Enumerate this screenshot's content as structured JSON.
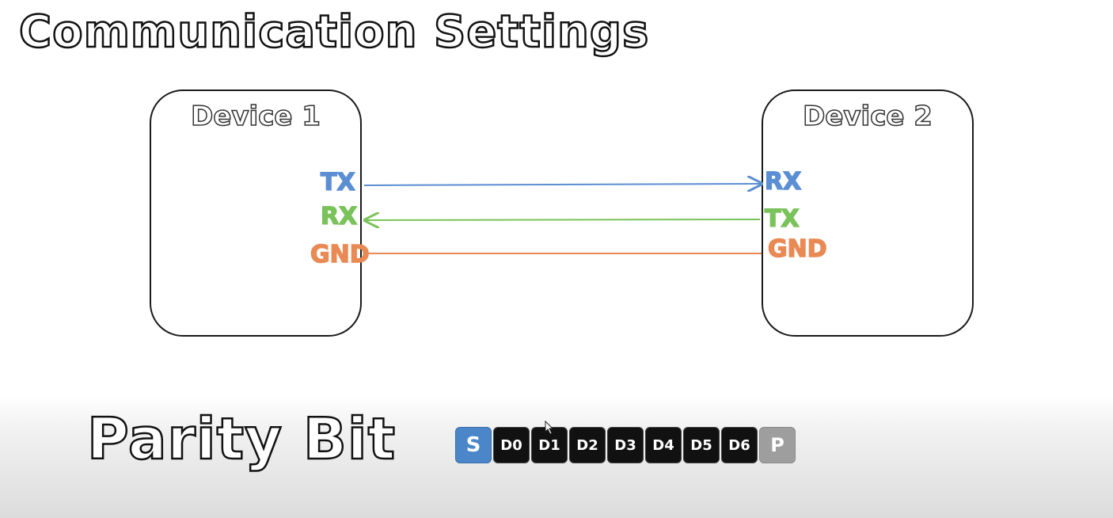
{
  "title": "Communication Settings",
  "device1": {
    "label": "Device 1",
    "pins": [
      "TX",
      "RX",
      "GND"
    ]
  },
  "device2": {
    "label": "Device 2",
    "pins": [
      "RX",
      "TX",
      "GND"
    ]
  },
  "colors": {
    "tx_line": "#5b8ed3",
    "rx_line": "#7ac25a",
    "gnd_line": "#e98a54",
    "start_bit": "#4a86c8",
    "data_bit": "#111111",
    "parity_bit": "#9e9e9e"
  },
  "parity": {
    "heading": "Parity Bit",
    "bits": [
      "S",
      "D0",
      "D1",
      "D2",
      "D3",
      "D4",
      "D5",
      "D6",
      "P"
    ]
  }
}
